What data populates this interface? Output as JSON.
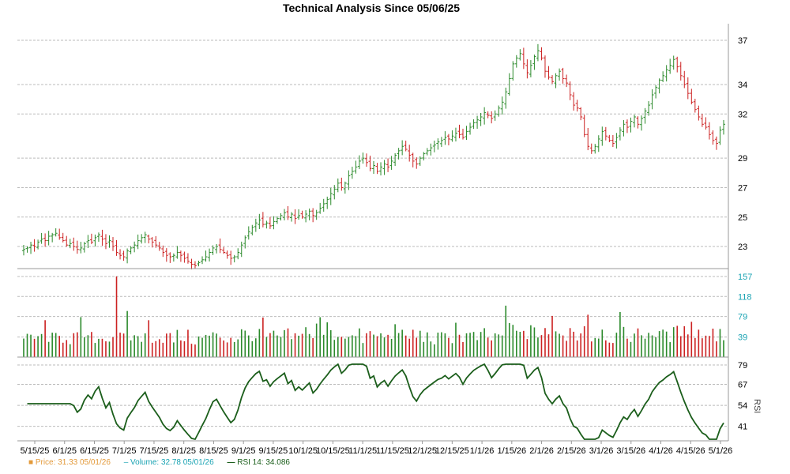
{
  "chart_data": {
    "type": "ohlc",
    "title": "Technical Analysis Since 05/06/25",
    "colors": {
      "up": "#2b8a2b",
      "down": "#cc2222",
      "rsi": "#1b5e1b",
      "volume_axis": "#1aa3b3",
      "price_axis": "#000000",
      "grid": "#bbbbbb",
      "price_legend": "#e39a3b"
    },
    "x_ticks": [
      "5/15/25",
      "6/1/25",
      "6/15/25",
      "7/1/25",
      "7/15/25",
      "8/1/25",
      "8/15/25",
      "9/1/25",
      "9/15/25",
      "10/1/25",
      "10/15/25",
      "11/1/25",
      "11/15/25",
      "12/1/25",
      "12/15/25",
      "1/1/26",
      "1/15/26",
      "2/1/26",
      "2/15/26",
      "3/1/26",
      "3/15/26",
      "4/1/26",
      "4/15/26",
      "5/1/26"
    ],
    "price_panel": {
      "yticks": [
        23,
        25,
        27,
        29,
        32,
        34,
        37
      ],
      "ylim": [
        21.5,
        37.7
      ]
    },
    "volume_panel": {
      "yticks": [
        39,
        79,
        118,
        157
      ],
      "ylim": [
        0,
        160
      ]
    },
    "rsi_panel": {
      "ylabel": "RSI",
      "yticks": [
        41,
        54,
        67,
        79
      ],
      "ylim": [
        32,
        80
      ]
    },
    "close_series": [
      22.8,
      22.9,
      23.1,
      23.0,
      23.3,
      23.5,
      23.4,
      23.7,
      23.8,
      23.9,
      23.6,
      23.4,
      23.1,
      23.2,
      23.0,
      22.8,
      22.9,
      23.2,
      23.4,
      23.3,
      23.6,
      23.8,
      23.5,
      23.2,
      23.4,
      23.0,
      22.6,
      22.4,
      22.3,
      22.7,
      22.9,
      23.1,
      23.4,
      23.6,
      23.8,
      23.5,
      23.3,
      23.1,
      22.9,
      22.6,
      22.4,
      22.3,
      22.4,
      22.6,
      22.4,
      22.2,
      22.0,
      21.8,
      21.7,
      21.9,
      22.1,
      22.3,
      22.6,
      22.9,
      23.0,
      22.8,
      22.6,
      22.4,
      22.2,
      22.3,
      22.6,
      23.1,
      23.6,
      24.0,
      24.3,
      24.6,
      24.8,
      24.5,
      24.6,
      24.4,
      24.7,
      24.9,
      25.1,
      25.3,
      25.0,
      25.2,
      24.9,
      25.1,
      25.0,
      25.2,
      25.4,
      25.1,
      25.3,
      25.6,
      25.9,
      26.2,
      26.6,
      26.9,
      27.3,
      27.0,
      27.3,
      27.8,
      28.1,
      28.4,
      28.8,
      29.0,
      28.7,
      28.3,
      28.5,
      28.1,
      28.4,
      28.6,
      28.4,
      28.8,
      29.2,
      29.5,
      29.8,
      29.6,
      29.2,
      28.8,
      28.6,
      29.0,
      29.3,
      29.5,
      29.7,
      29.9,
      30.1,
      30.2,
      30.4,
      30.3,
      30.5,
      30.7,
      30.6,
      30.4,
      30.8,
      31.1,
      31.4,
      31.6,
      31.8,
      32.1,
      31.9,
      31.7,
      32.0,
      32.4,
      32.8,
      33.5,
      34.4,
      35.4,
      35.8,
      36.1,
      35.4,
      34.8,
      35.3,
      35.9,
      36.3,
      35.8,
      34.9,
      34.5,
      34.2,
      34.6,
      34.9,
      34.4,
      34.1,
      33.3,
      32.6,
      32.4,
      31.8,
      30.6,
      29.8,
      29.5,
      29.8,
      30.3,
      30.8,
      30.5,
      30.2,
      30.0,
      30.4,
      30.9,
      31.3,
      31.1,
      31.5,
      31.8,
      31.3,
      31.7,
      32.2,
      32.6,
      33.3,
      33.8,
      34.3,
      34.6,
      35.0,
      35.3,
      35.7,
      35.2,
      34.6,
      34.0,
      33.4,
      32.8,
      32.3,
      31.8,
      31.3,
      31.1,
      30.6,
      30.2,
      30.0,
      30.9,
      31.3
    ]
  },
  "legend": {
    "price_label": "Price: 31.33 05/01/26",
    "volume_label": "Volume: 32.78 05/01/26",
    "rsi_label": "RSI 14: 34.086"
  }
}
